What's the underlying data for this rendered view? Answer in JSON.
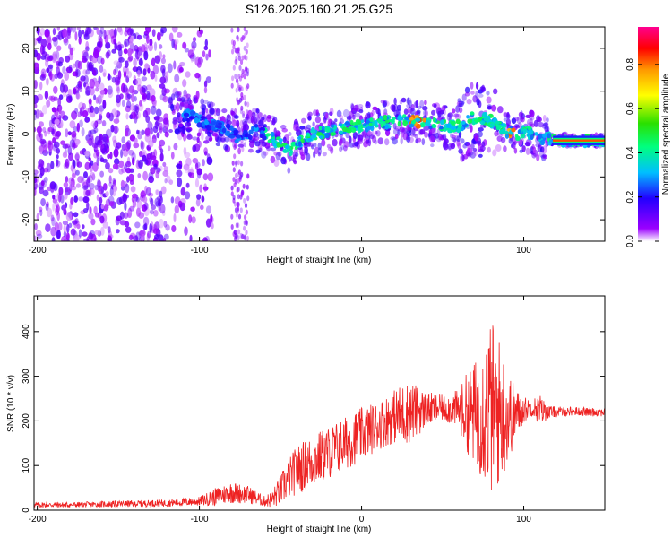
{
  "chart_data": [
    {
      "type": "heatmap",
      "title": "S126.2025.160.21.25.G25",
      "xlabel": "Height of straight line (km)",
      "ylabel": "Frequency (Hz)",
      "xlim": [
        -202,
        150
      ],
      "ylim": [
        -25,
        25
      ],
      "xticks": [
        -200,
        -100,
        0,
        100
      ],
      "yticks": [
        -20,
        -10,
        0,
        10,
        20
      ],
      "colorbar": {
        "label": "Normalized spectral amplitude",
        "range": [
          0,
          0.97
        ],
        "ticks": [
          "0.0",
          "0.2",
          "0.4",
          "0.6",
          "0.8"
        ],
        "colors": [
          "#ffffff",
          "#9a00ff",
          "#2200ff",
          "#00bfff",
          "#00ff7f",
          "#2ae000",
          "#ffff00",
          "#ff9900",
          "#ff0000",
          "#ff0090"
        ]
      },
      "ridge": {
        "x": [
          -115,
          -105,
          -95,
          -85,
          -75,
          -65,
          -55,
          -50,
          -45,
          -40,
          -35,
          -30,
          -20,
          -10,
          0,
          10,
          20,
          30,
          40,
          50,
          55,
          60,
          70,
          80,
          85,
          90,
          95,
          100,
          105,
          110,
          115,
          120,
          130,
          140,
          150
        ],
        "y": [
          5,
          4,
          2.5,
          1.5,
          -1,
          1,
          -1,
          -2.5,
          -4,
          -2,
          -1,
          0,
          0.5,
          1.5,
          2,
          2.5,
          3,
          3,
          2.5,
          2,
          1.5,
          2,
          4,
          3,
          2,
          0.5,
          0,
          0.5,
          0,
          -1,
          -1,
          -1.5,
          -1.5,
          -1.5,
          -1.5
        ]
      }
    },
    {
      "type": "line",
      "xlabel": "Height of straight line (km)",
      "ylabel": "SNR (10 * v/v)",
      "xlim": [
        -202,
        150
      ],
      "ylim": [
        0,
        480
      ],
      "xticks": [
        -200,
        -100,
        0,
        100
      ],
      "yticks": [
        0,
        100,
        200,
        300,
        400
      ],
      "color": "#ee2222",
      "envelope": {
        "x": [
          -202,
          -180,
          -150,
          -120,
          -100,
          -90,
          -80,
          -70,
          -60,
          -55,
          -50,
          -45,
          -40,
          -30,
          -20,
          -10,
          0,
          10,
          20,
          25,
          30,
          40,
          50,
          60,
          65,
          70,
          75,
          80,
          85,
          90,
          95,
          100,
          105,
          110,
          115,
          120,
          130,
          140,
          150
        ],
        "mean": [
          12,
          12,
          14,
          16,
          20,
          30,
          40,
          35,
          20,
          25,
          45,
          70,
          90,
          110,
          130,
          150,
          170,
          190,
          210,
          215,
          220,
          225,
          230,
          225,
          220,
          215,
          225,
          230,
          220,
          210,
          215,
          225,
          230,
          225,
          220,
          220,
          222,
          220,
          220
        ],
        "amp": [
          6,
          6,
          7,
          8,
          10,
          20,
          25,
          20,
          12,
          20,
          35,
          45,
          55,
          60,
          60,
          60,
          60,
          55,
          60,
          70,
          70,
          40,
          30,
          45,
          90,
          120,
          160,
          200,
          170,
          110,
          60,
          30,
          20,
          35,
          15,
          12,
          10,
          10,
          10
        ]
      }
    }
  ]
}
